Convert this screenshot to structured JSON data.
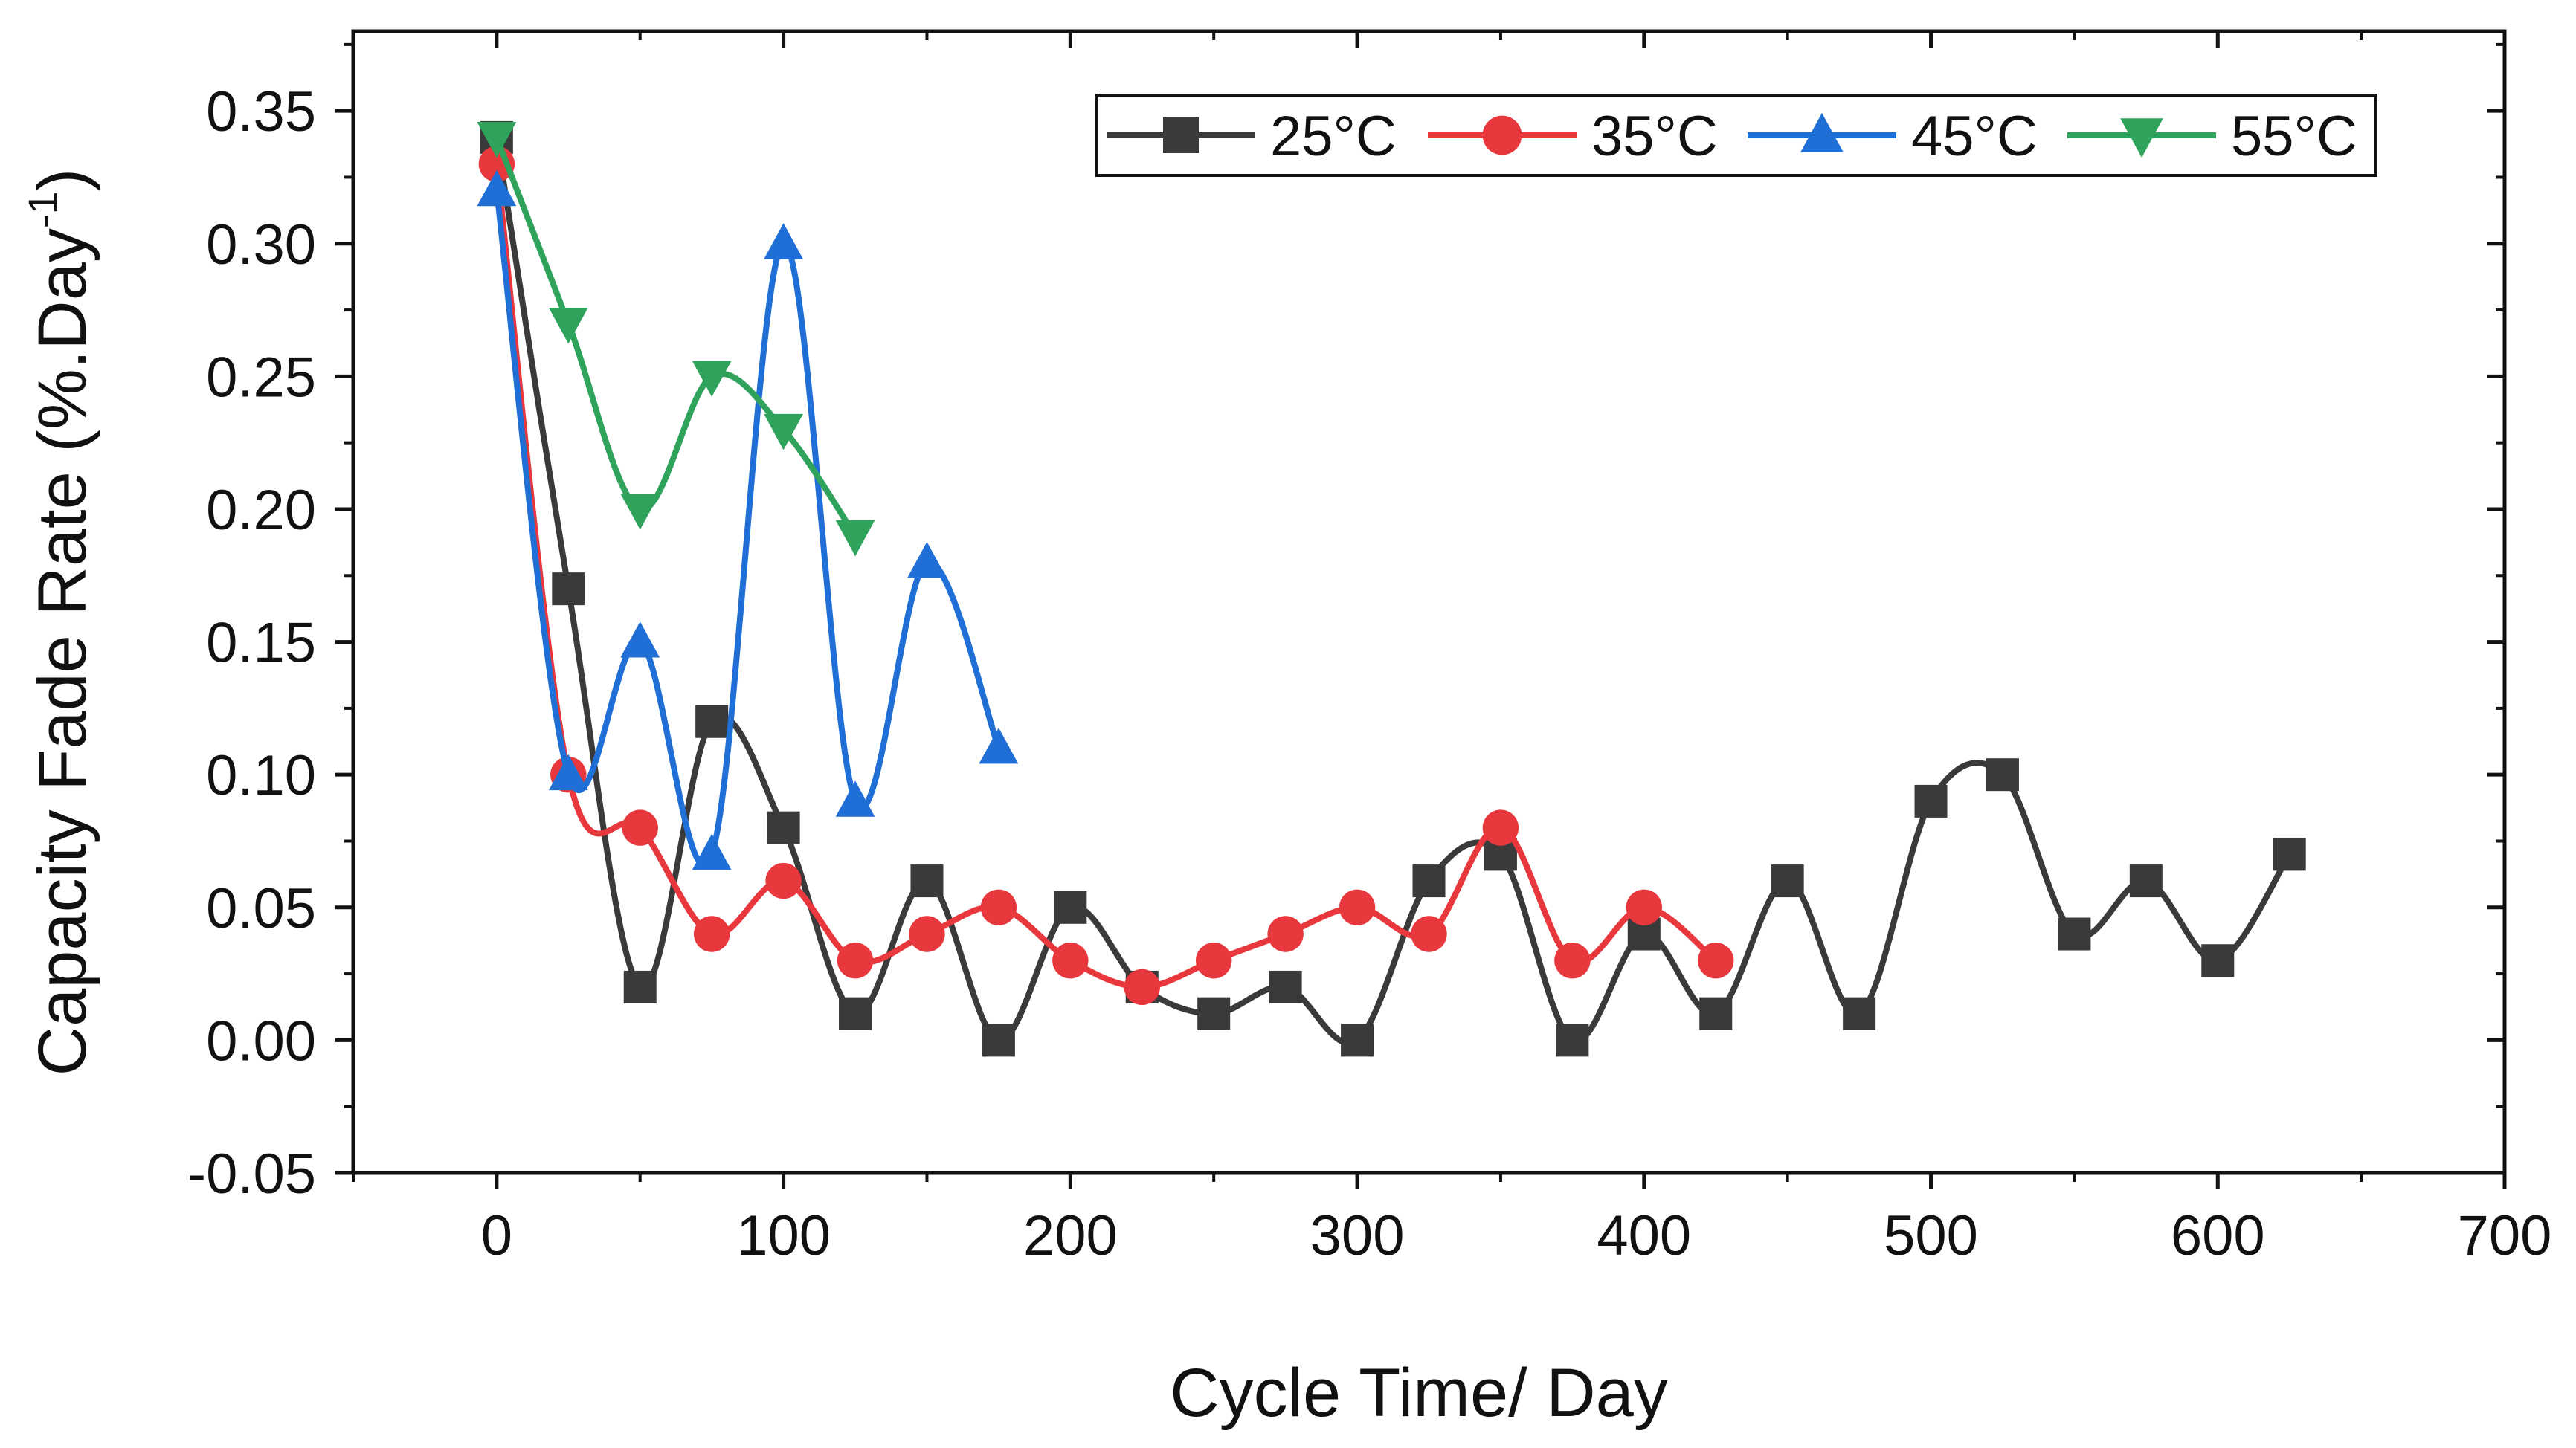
{
  "chart_data": {
    "type": "line",
    "title": "",
    "xlabel": "Cycle Time/ Day",
    "ylabel_main": "Capacity Fade Rate (%.Day",
    "ylabel_sup": "-1",
    "ylabel_close": ")",
    "xlim": [
      -50,
      700
    ],
    "ylim": [
      -0.05,
      0.38
    ],
    "x_ticks": [
      0,
      100,
      200,
      300,
      400,
      500,
      600,
      700
    ],
    "x_tick_labels": [
      "0",
      "100",
      "200",
      "300",
      "400",
      "500",
      "600",
      "700"
    ],
    "y_ticks": [
      -0.05,
      0,
      0.05,
      0.1,
      0.15,
      0.2,
      0.25,
      0.3,
      0.35
    ],
    "y_tick_labels": [
      "-0.05",
      "0.00",
      "0.05",
      "0.10",
      "0.15",
      "0.20",
      "0.25",
      "0.30",
      "0.35"
    ],
    "grid": false,
    "legend_position": "top-right",
    "series": [
      {
        "name": "25°C",
        "color": "#3a3a3a",
        "marker": "square",
        "x": [
          0,
          25,
          50,
          75,
          100,
          125,
          150,
          175,
          200,
          225,
          250,
          275,
          300,
          325,
          350,
          375,
          400,
          425,
          450,
          475,
          500,
          525,
          550,
          575,
          600,
          625
        ],
        "values": [
          0.34,
          0.17,
          0.02,
          0.12,
          0.08,
          0.01,
          0.06,
          0.0,
          0.05,
          0.02,
          0.01,
          0.02,
          0.0,
          0.06,
          0.07,
          0.0,
          0.04,
          0.01,
          0.06,
          0.01,
          0.09,
          0.1,
          0.04,
          0.06,
          0.03,
          0.07
        ]
      },
      {
        "name": "35°C",
        "color": "#e8383d",
        "marker": "circle",
        "x": [
          0,
          25,
          50,
          75,
          100,
          125,
          150,
          175,
          200,
          225,
          250,
          275,
          300,
          325,
          350,
          375,
          400,
          425
        ],
        "values": [
          0.33,
          0.1,
          0.08,
          0.04,
          0.06,
          0.03,
          0.04,
          0.05,
          0.03,
          0.02,
          0.03,
          0.04,
          0.05,
          0.04,
          0.08,
          0.03,
          0.05,
          0.03
        ]
      },
      {
        "name": "45°C",
        "color": "#1f6fd6",
        "marker": "triangle-up",
        "x": [
          0,
          25,
          50,
          75,
          100,
          125,
          150,
          175
        ],
        "values": [
          0.32,
          0.1,
          0.15,
          0.07,
          0.3,
          0.09,
          0.18,
          0.11
        ]
      },
      {
        "name": "55°C",
        "color": "#2fa35b",
        "marker": "triangle-down",
        "x": [
          0,
          25,
          50,
          75,
          100,
          125
        ],
        "values": [
          0.34,
          0.27,
          0.2,
          0.25,
          0.23,
          0.19
        ]
      }
    ]
  }
}
